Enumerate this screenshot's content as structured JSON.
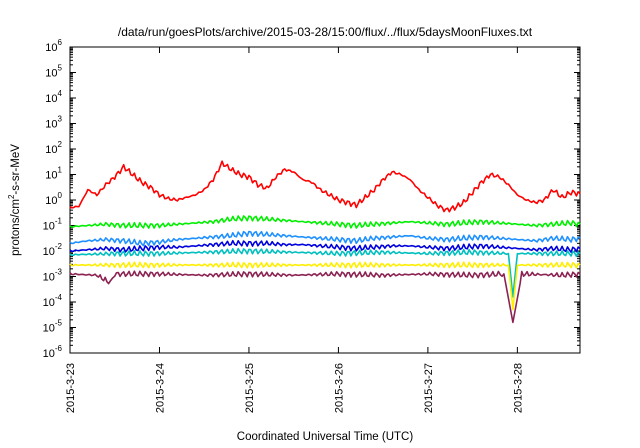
{
  "chart_data": {
    "type": "line",
    "title": "/data/run/goesPlots/archive/2015-03-28/15:00/flux/../flux/5daysMoonFluxes.txt",
    "xlabel": "Coordinated Universal Time (UTC)",
    "ylabel": {
      "pre": "protons/cm",
      "sup": "2",
      "post": "-s-sr-MeV"
    },
    "y_scale": "log",
    "ylim_exponent": [
      -6,
      6
    ],
    "y_ticks": [
      {
        "base": "10",
        "exp": "-6"
      },
      {
        "base": "10",
        "exp": "-5"
      },
      {
        "base": "10",
        "exp": "-4"
      },
      {
        "base": "10",
        "exp": "-3"
      },
      {
        "base": "10",
        "exp": "-2"
      },
      {
        "base": "10",
        "exp": "-1"
      },
      {
        "base": "10",
        "exp": "0"
      },
      {
        "base": "10",
        "exp": "1"
      },
      {
        "base": "10",
        "exp": "2"
      },
      {
        "base": "10",
        "exp": "3"
      },
      {
        "base": "10",
        "exp": "4"
      },
      {
        "base": "10",
        "exp": "5"
      },
      {
        "base": "10",
        "exp": "6"
      }
    ],
    "x_ticks": [
      "2015-3-23",
      "2015-3-24",
      "2015-3-25",
      "2015-3-26",
      "2015-3-27",
      "2015-3-28"
    ],
    "x_range_days": [
      0,
      5.7
    ],
    "grid": false,
    "series": [
      {
        "color": "#ff0000",
        "points": [
          [
            0,
            -0.3
          ],
          [
            0.1,
            -0.25
          ],
          [
            0.2,
            0.4
          ],
          [
            0.3,
            0.2
          ],
          [
            0.4,
            0.6
          ],
          [
            0.5,
            0.9
          ],
          [
            0.6,
            1.3
          ],
          [
            0.7,
            1.0
          ],
          [
            0.8,
            0.7
          ],
          [
            0.9,
            0.5
          ],
          [
            1.0,
            0.2
          ],
          [
            1.1,
            0.05
          ],
          [
            1.2,
            0.0
          ],
          [
            1.3,
            0.1
          ],
          [
            1.4,
            0.2
          ],
          [
            1.5,
            0.4
          ],
          [
            1.6,
            0.8
          ],
          [
            1.7,
            1.45
          ],
          [
            1.8,
            1.2
          ],
          [
            1.9,
            1.0
          ],
          [
            2.0,
            0.9
          ],
          [
            2.1,
            0.6
          ],
          [
            2.2,
            0.45
          ],
          [
            2.3,
            0.9
          ],
          [
            2.4,
            1.2
          ],
          [
            2.5,
            1.1
          ],
          [
            2.6,
            0.8
          ],
          [
            2.7,
            0.7
          ],
          [
            2.8,
            0.4
          ],
          [
            2.9,
            0.2
          ],
          [
            3.0,
            0.0
          ],
          [
            3.1,
            -0.1
          ],
          [
            3.2,
            -0.2
          ],
          [
            3.3,
            0.1
          ],
          [
            3.4,
            0.4
          ],
          [
            3.5,
            0.8
          ],
          [
            3.6,
            1.1
          ],
          [
            3.7,
            1.0
          ],
          [
            3.8,
            0.8
          ],
          [
            3.9,
            0.4
          ],
          [
            4.0,
            0.1
          ],
          [
            4.1,
            -0.2
          ],
          [
            4.2,
            -0.4
          ],
          [
            4.3,
            -0.3
          ],
          [
            4.4,
            -0.1
          ],
          [
            4.5,
            0.3
          ],
          [
            4.6,
            0.7
          ],
          [
            4.7,
            1.0
          ],
          [
            4.8,
            0.9
          ],
          [
            4.9,
            0.6
          ],
          [
            5.0,
            0.2
          ],
          [
            5.1,
            0.0
          ],
          [
            5.2,
            -0.1
          ],
          [
            5.3,
            0.0
          ],
          [
            5.4,
            0.4
          ],
          [
            5.5,
            0.1
          ],
          [
            5.6,
            0.3
          ],
          [
            5.7,
            0.25
          ]
        ]
      },
      {
        "color": "#00ee00",
        "points": [
          [
            0,
            -1.05
          ],
          [
            0.2,
            -1.0
          ],
          [
            0.4,
            -0.95
          ],
          [
            0.6,
            -1.0
          ],
          [
            0.8,
            -1.0
          ],
          [
            1.0,
            -1.0
          ],
          [
            1.2,
            -0.95
          ],
          [
            1.4,
            -0.9
          ],
          [
            1.6,
            -0.85
          ],
          [
            1.8,
            -0.75
          ],
          [
            2.0,
            -0.7
          ],
          [
            2.2,
            -0.75
          ],
          [
            2.4,
            -0.8
          ],
          [
            2.6,
            -0.85
          ],
          [
            2.8,
            -0.9
          ],
          [
            3.0,
            -0.95
          ],
          [
            3.2,
            -1.0
          ],
          [
            3.4,
            -0.95
          ],
          [
            3.6,
            -0.9
          ],
          [
            3.8,
            -0.85
          ],
          [
            4.0,
            -0.9
          ],
          [
            4.2,
            -0.95
          ],
          [
            4.4,
            -0.9
          ],
          [
            4.6,
            -0.85
          ],
          [
            4.8,
            -0.9
          ],
          [
            5.0,
            -0.95
          ],
          [
            5.2,
            -1.0
          ],
          [
            5.4,
            -0.95
          ],
          [
            5.6,
            -0.9
          ],
          [
            5.7,
            -0.95
          ]
        ]
      },
      {
        "color": "#1e90ff",
        "points": [
          [
            0,
            -1.7
          ],
          [
            0.2,
            -1.6
          ],
          [
            0.4,
            -1.55
          ],
          [
            0.6,
            -1.6
          ],
          [
            0.8,
            -1.7
          ],
          [
            1.0,
            -1.65
          ],
          [
            1.2,
            -1.55
          ],
          [
            1.4,
            -1.5
          ],
          [
            1.6,
            -1.45
          ],
          [
            1.8,
            -1.4
          ],
          [
            2.0,
            -1.3
          ],
          [
            2.2,
            -1.35
          ],
          [
            2.4,
            -1.4
          ],
          [
            2.6,
            -1.45
          ],
          [
            2.8,
            -1.5
          ],
          [
            3.0,
            -1.55
          ],
          [
            3.2,
            -1.6
          ],
          [
            3.4,
            -1.5
          ],
          [
            3.6,
            -1.45
          ],
          [
            3.8,
            -1.4
          ],
          [
            4.0,
            -1.5
          ],
          [
            4.2,
            -1.55
          ],
          [
            4.4,
            -1.5
          ],
          [
            4.6,
            -1.45
          ],
          [
            4.8,
            -1.5
          ],
          [
            5.0,
            -1.55
          ],
          [
            5.2,
            -1.6
          ],
          [
            5.4,
            -1.5
          ],
          [
            5.6,
            -1.55
          ],
          [
            5.7,
            -1.5
          ]
        ]
      },
      {
        "color": "#0000dd",
        "points": [
          [
            0,
            -2.0
          ],
          [
            0.2,
            -1.95
          ],
          [
            0.4,
            -1.9
          ],
          [
            0.6,
            -1.95
          ],
          [
            0.8,
            -1.9
          ],
          [
            1.0,
            -1.85
          ],
          [
            1.2,
            -1.85
          ],
          [
            1.4,
            -1.8
          ],
          [
            1.6,
            -1.75
          ],
          [
            1.8,
            -1.7
          ],
          [
            2.0,
            -1.7
          ],
          [
            2.2,
            -1.7
          ],
          [
            2.4,
            -1.75
          ],
          [
            2.6,
            -1.75
          ],
          [
            2.8,
            -1.8
          ],
          [
            3.0,
            -1.85
          ],
          [
            3.2,
            -1.9
          ],
          [
            3.4,
            -1.85
          ],
          [
            3.6,
            -1.8
          ],
          [
            3.8,
            -1.8
          ],
          [
            4.0,
            -1.85
          ],
          [
            4.2,
            -1.9
          ],
          [
            4.4,
            -1.85
          ],
          [
            4.6,
            -1.8
          ],
          [
            4.8,
            -1.85
          ],
          [
            5.0,
            -1.9
          ],
          [
            5.2,
            -1.95
          ],
          [
            5.4,
            -1.9
          ],
          [
            5.6,
            -1.95
          ],
          [
            5.7,
            -1.9
          ]
        ]
      },
      {
        "color": "#00bfbf",
        "points": [
          [
            0,
            -2.15
          ],
          [
            0.5,
            -2.1
          ],
          [
            1.0,
            -2.1
          ],
          [
            1.5,
            -2.05
          ],
          [
            2.0,
            -2.0
          ],
          [
            2.5,
            -2.05
          ],
          [
            3.0,
            -2.1
          ],
          [
            3.5,
            -2.05
          ],
          [
            4.0,
            -2.1
          ],
          [
            4.5,
            -2.05
          ],
          [
            4.9,
            -2.1
          ],
          [
            4.95,
            -3.8
          ],
          [
            5.0,
            -2.1
          ],
          [
            5.5,
            -2.1
          ],
          [
            5.7,
            -2.1
          ]
        ]
      },
      {
        "color": "#ffee00",
        "points": [
          [
            0,
            -2.55
          ],
          [
            1.0,
            -2.55
          ],
          [
            2.0,
            -2.55
          ],
          [
            3.0,
            -2.55
          ],
          [
            4.0,
            -2.55
          ],
          [
            4.9,
            -2.55
          ],
          [
            4.95,
            -4.3
          ],
          [
            5.0,
            -2.55
          ],
          [
            5.7,
            -2.55
          ]
        ]
      },
      {
        "color": "#8b2252",
        "points": [
          [
            0,
            -2.9
          ],
          [
            0.3,
            -2.95
          ],
          [
            0.45,
            -3.25
          ],
          [
            0.5,
            -2.9
          ],
          [
            1.0,
            -2.9
          ],
          [
            1.5,
            -2.95
          ],
          [
            2.0,
            -2.9
          ],
          [
            2.5,
            -2.95
          ],
          [
            3.0,
            -2.9
          ],
          [
            3.5,
            -2.95
          ],
          [
            4.0,
            -2.9
          ],
          [
            4.5,
            -2.95
          ],
          [
            4.85,
            -2.9
          ],
          [
            4.95,
            -4.8
          ],
          [
            5.05,
            -2.9
          ],
          [
            5.5,
            -2.95
          ],
          [
            5.7,
            -2.9
          ]
        ]
      }
    ]
  }
}
